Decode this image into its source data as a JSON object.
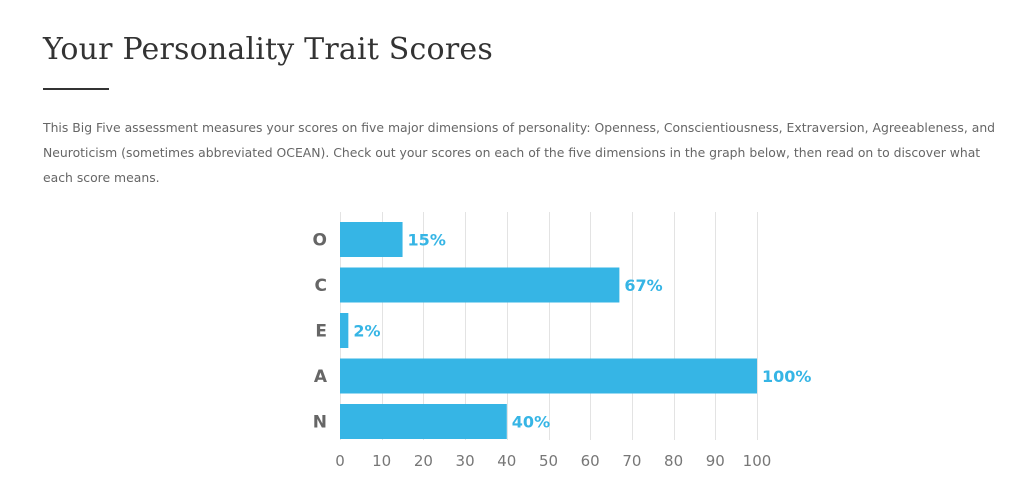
{
  "page": {
    "title": "Your Personality Trait Scores",
    "intro": "This Big Five assessment measures your scores on five major dimensions of personality: Openness, Conscientiousness, Extraversion, Agreeableness, and Neuroticism (sometimes abbreviated OCEAN). Check out your scores on each of the five dimensions in the graph below, then read on to discover what each score means."
  },
  "colors": {
    "bar": "#36b5e5",
    "value_label": "#36b5e5",
    "grid": "#e3e3e3",
    "title": "#333333",
    "text": "#666666"
  },
  "chart_data": {
    "type": "bar",
    "orientation": "horizontal",
    "categories": [
      "O",
      "C",
      "E",
      "A",
      "N"
    ],
    "values": [
      15,
      67,
      2,
      100,
      40
    ],
    "value_labels": [
      "15%",
      "67%",
      "2%",
      "100%",
      "40%"
    ],
    "xlim": [
      0,
      100
    ],
    "xticks": [
      0,
      10,
      20,
      30,
      40,
      50,
      60,
      70,
      80,
      90,
      100
    ],
    "grid": true
  }
}
